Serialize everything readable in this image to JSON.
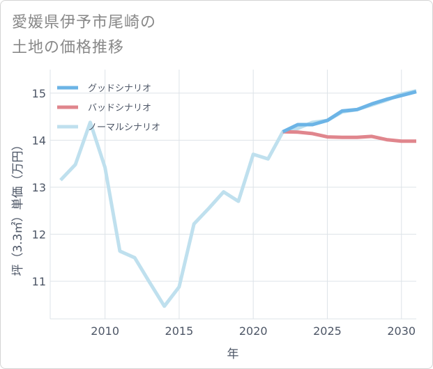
{
  "chart_data": {
    "type": "line",
    "title_lines": [
      "愛媛県伊予市尾崎の",
      "土地の価格推移"
    ],
    "xlabel": "年",
    "ylabel": "坪（3.3㎡）単価（万円）",
    "xlim": [
      2006.3,
      2031
    ],
    "ylim": [
      10.2,
      15.5
    ],
    "xticks": [
      2010,
      2015,
      2020,
      2025,
      2030
    ],
    "yticks": [
      11,
      12,
      13,
      14,
      15
    ],
    "legend_position": "top-left",
    "series": [
      {
        "name": "グッドシナリオ",
        "color": "#6cb4e6",
        "x": [
          2022,
          2023,
          2024,
          2025,
          2026,
          2027,
          2028,
          2029,
          2030,
          2031
        ],
        "y": [
          14.18,
          14.33,
          14.33,
          14.42,
          14.62,
          14.65,
          14.77,
          14.87,
          14.95,
          15.03
        ]
      },
      {
        "name": "バッドシナリオ",
        "color": "#e0868d",
        "x": [
          2022,
          2023,
          2024,
          2025,
          2026,
          2027,
          2028,
          2029,
          2030,
          2031
        ],
        "y": [
          14.18,
          14.17,
          14.14,
          14.07,
          14.06,
          14.06,
          14.08,
          14.01,
          13.98,
          13.98
        ]
      },
      {
        "name": "ノーマルシナリオ",
        "color": "#bfe0ee",
        "x": [
          2007,
          2008,
          2009,
          2010,
          2011,
          2012,
          2013,
          2014,
          2015,
          2016,
          2017,
          2018,
          2019,
          2020,
          2021,
          2022,
          2023,
          2024,
          2025,
          2026,
          2027,
          2028,
          2029,
          2030,
          2031
        ],
        "y": [
          13.15,
          13.48,
          14.38,
          13.42,
          11.64,
          11.5,
          10.98,
          10.47,
          10.88,
          12.22,
          12.55,
          12.9,
          12.7,
          13.7,
          13.6,
          14.18,
          14.25,
          14.38,
          14.42,
          14.6,
          14.65,
          14.75,
          14.85,
          14.98,
          15.05
        ]
      }
    ]
  }
}
